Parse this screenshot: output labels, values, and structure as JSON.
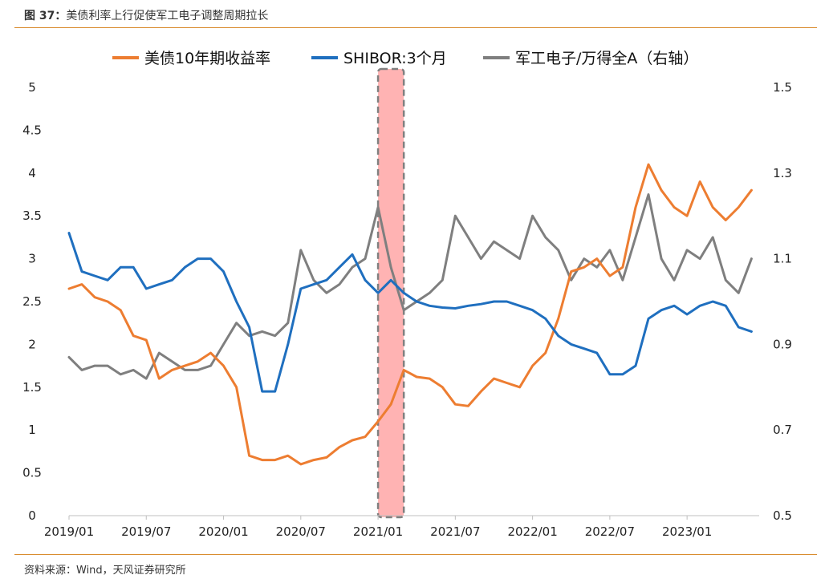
{
  "figure": {
    "label": "图 37：",
    "title": "美债利率上行促使军工电子调整周期拉长",
    "source": "资料来源：Wind，天风证券研究所"
  },
  "chart_data": {
    "type": "line",
    "title": "美债利率上行促使军工电子调整周期拉长",
    "x_tick_labels": [
      "2019/01",
      "2019/07",
      "2020/01",
      "2020/07",
      "2021/01",
      "2021/07",
      "2022/01",
      "2022/07",
      "2023/01"
    ],
    "y_left": {
      "ticks": [
        "0",
        "0.5",
        "1",
        "1.5",
        "2",
        "2.5",
        "3",
        "3.5",
        "4",
        "4.5",
        "5"
      ],
      "ylim": [
        0,
        5
      ]
    },
    "y_right": {
      "ticks": [
        "0.5",
        "0.7",
        "0.9",
        "1.1",
        "1.3",
        "1.5"
      ],
      "ylim": [
        0.5,
        1.5
      ]
    },
    "legend_position": "top",
    "grid": false,
    "highlight": {
      "from": "2021/01",
      "to": "2021/03",
      "color": "#ffb3b3"
    },
    "series": [
      {
        "name": "美债10年期收益率",
        "axis": "left",
        "color": "#ed7d31",
        "points": [
          [
            "2019/01",
            2.65
          ],
          [
            "2019/02",
            2.7
          ],
          [
            "2019/03",
            2.55
          ],
          [
            "2019/04",
            2.5
          ],
          [
            "2019/05",
            2.4
          ],
          [
            "2019/06",
            2.1
          ],
          [
            "2019/07",
            2.05
          ],
          [
            "2019/08",
            1.6
          ],
          [
            "2019/09",
            1.7
          ],
          [
            "2019/10",
            1.75
          ],
          [
            "2019/11",
            1.8
          ],
          [
            "2019/12",
            1.9
          ],
          [
            "2020/01",
            1.75
          ],
          [
            "2020/02",
            1.5
          ],
          [
            "2020/03",
            0.7
          ],
          [
            "2020/04",
            0.65
          ],
          [
            "2020/05",
            0.65
          ],
          [
            "2020/06",
            0.7
          ],
          [
            "2020/07",
            0.6
          ],
          [
            "2020/08",
            0.65
          ],
          [
            "2020/09",
            0.68
          ],
          [
            "2020/10",
            0.8
          ],
          [
            "2020/11",
            0.88
          ],
          [
            "2020/12",
            0.92
          ],
          [
            "2021/01",
            1.1
          ],
          [
            "2021/02",
            1.3
          ],
          [
            "2021/03",
            1.7
          ],
          [
            "2021/04",
            1.62
          ],
          [
            "2021/05",
            1.6
          ],
          [
            "2021/06",
            1.5
          ],
          [
            "2021/07",
            1.3
          ],
          [
            "2021/08",
            1.28
          ],
          [
            "2021/09",
            1.45
          ],
          [
            "2021/10",
            1.6
          ],
          [
            "2021/11",
            1.55
          ],
          [
            "2021/12",
            1.5
          ],
          [
            "2022/01",
            1.75
          ],
          [
            "2022/02",
            1.9
          ],
          [
            "2022/03",
            2.3
          ],
          [
            "2022/04",
            2.85
          ],
          [
            "2022/05",
            2.9
          ],
          [
            "2022/06",
            3.0
          ],
          [
            "2022/07",
            2.8
          ],
          [
            "2022/08",
            2.9
          ],
          [
            "2022/09",
            3.6
          ],
          [
            "2022/10",
            4.1
          ],
          [
            "2022/11",
            3.8
          ],
          [
            "2022/12",
            3.6
          ],
          [
            "2023/01",
            3.5
          ],
          [
            "2023/02",
            3.9
          ],
          [
            "2023/03",
            3.6
          ],
          [
            "2023/04",
            3.45
          ],
          [
            "2023/05",
            3.6
          ],
          [
            "2023/06",
            3.8
          ]
        ]
      },
      {
        "name": "SHIBOR:3个月",
        "axis": "left",
        "color": "#1f6fbf",
        "points": [
          [
            "2019/01",
            3.3
          ],
          [
            "2019/02",
            2.85
          ],
          [
            "2019/03",
            2.8
          ],
          [
            "2019/04",
            2.75
          ],
          [
            "2019/05",
            2.9
          ],
          [
            "2019/06",
            2.9
          ],
          [
            "2019/07",
            2.65
          ],
          [
            "2019/08",
            2.7
          ],
          [
            "2019/09",
            2.75
          ],
          [
            "2019/10",
            2.9
          ],
          [
            "2019/11",
            3.0
          ],
          [
            "2019/12",
            3.0
          ],
          [
            "2020/01",
            2.85
          ],
          [
            "2020/02",
            2.5
          ],
          [
            "2020/03",
            2.2
          ],
          [
            "2020/04",
            1.45
          ],
          [
            "2020/05",
            1.45
          ],
          [
            "2020/06",
            2.0
          ],
          [
            "2020/07",
            2.65
          ],
          [
            "2020/08",
            2.7
          ],
          [
            "2020/09",
            2.75
          ],
          [
            "2020/10",
            2.9
          ],
          [
            "2020/11",
            3.05
          ],
          [
            "2020/12",
            2.75
          ],
          [
            "2021/01",
            2.6
          ],
          [
            "2021/02",
            2.75
          ],
          [
            "2021/03",
            2.6
          ],
          [
            "2021/04",
            2.5
          ],
          [
            "2021/05",
            2.45
          ],
          [
            "2021/06",
            2.43
          ],
          [
            "2021/07",
            2.42
          ],
          [
            "2021/08",
            2.45
          ],
          [
            "2021/09",
            2.47
          ],
          [
            "2021/10",
            2.5
          ],
          [
            "2021/11",
            2.5
          ],
          [
            "2021/12",
            2.45
          ],
          [
            "2022/01",
            2.4
          ],
          [
            "2022/02",
            2.3
          ],
          [
            "2022/03",
            2.1
          ],
          [
            "2022/04",
            2.0
          ],
          [
            "2022/05",
            1.95
          ],
          [
            "2022/06",
            1.9
          ],
          [
            "2022/07",
            1.65
          ],
          [
            "2022/08",
            1.65
          ],
          [
            "2022/09",
            1.75
          ],
          [
            "2022/10",
            2.3
          ],
          [
            "2022/11",
            2.4
          ],
          [
            "2022/12",
            2.45
          ],
          [
            "2023/01",
            2.35
          ],
          [
            "2023/02",
            2.45
          ],
          [
            "2023/03",
            2.5
          ],
          [
            "2023/04",
            2.45
          ],
          [
            "2023/05",
            2.2
          ],
          [
            "2023/06",
            2.15
          ]
        ]
      },
      {
        "name": "军工电子/万得全A（右轴）",
        "axis": "right",
        "color": "#7f7f7f",
        "points": [
          [
            "2019/01",
            0.87
          ],
          [
            "2019/02",
            0.84
          ],
          [
            "2019/03",
            0.85
          ],
          [
            "2019/04",
            0.85
          ],
          [
            "2019/05",
            0.83
          ],
          [
            "2019/06",
            0.84
          ],
          [
            "2019/07",
            0.82
          ],
          [
            "2019/08",
            0.88
          ],
          [
            "2019/09",
            0.86
          ],
          [
            "2019/10",
            0.84
          ],
          [
            "2019/11",
            0.84
          ],
          [
            "2019/12",
            0.85
          ],
          [
            "2020/01",
            0.9
          ],
          [
            "2020/02",
            0.95
          ],
          [
            "2020/03",
            0.92
          ],
          [
            "2020/04",
            0.93
          ],
          [
            "2020/05",
            0.92
          ],
          [
            "2020/06",
            0.95
          ],
          [
            "2020/07",
            1.12
          ],
          [
            "2020/08",
            1.05
          ],
          [
            "2020/09",
            1.02
          ],
          [
            "2020/10",
            1.04
          ],
          [
            "2020/11",
            1.08
          ],
          [
            "2020/12",
            1.1
          ],
          [
            "2021/01",
            1.22
          ],
          [
            "2021/02",
            1.08
          ],
          [
            "2021/03",
            0.98
          ],
          [
            "2021/04",
            1.0
          ],
          [
            "2021/05",
            1.02
          ],
          [
            "2021/06",
            1.05
          ],
          [
            "2021/07",
            1.2
          ],
          [
            "2021/08",
            1.15
          ],
          [
            "2021/09",
            1.1
          ],
          [
            "2021/10",
            1.14
          ],
          [
            "2021/11",
            1.12
          ],
          [
            "2021/12",
            1.1
          ],
          [
            "2022/01",
            1.2
          ],
          [
            "2022/02",
            1.15
          ],
          [
            "2022/03",
            1.12
          ],
          [
            "2022/04",
            1.05
          ],
          [
            "2022/05",
            1.1
          ],
          [
            "2022/06",
            1.08
          ],
          [
            "2022/07",
            1.12
          ],
          [
            "2022/08",
            1.05
          ],
          [
            "2022/09",
            1.15
          ],
          [
            "2022/10",
            1.25
          ],
          [
            "2022/11",
            1.1
          ],
          [
            "2022/12",
            1.05
          ],
          [
            "2023/01",
            1.12
          ],
          [
            "2023/02",
            1.1
          ],
          [
            "2023/03",
            1.15
          ],
          [
            "2023/04",
            1.05
          ],
          [
            "2023/05",
            1.02
          ],
          [
            "2023/06",
            1.1
          ]
        ]
      }
    ]
  }
}
